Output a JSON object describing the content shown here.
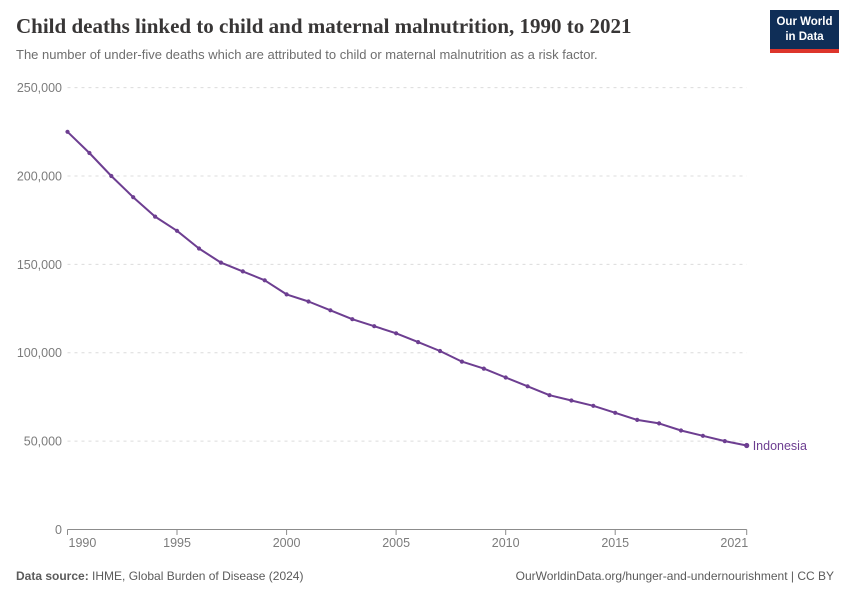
{
  "logo": {
    "line1": "Our World",
    "line2": "in Data",
    "bg": "#0f2e57",
    "accent": "#dd352b"
  },
  "footer": {
    "datasource_label": "Data source:",
    "datasource_text": " IHME, Global Burden of Disease (2024)",
    "credit": "OurWorldinData.org/hunger-and-undernourishment | CC BY"
  },
  "chart_data": {
    "type": "line",
    "title": "Child deaths linked to child and maternal malnutrition, 1990 to 2021",
    "subtitle": "The number of under-five deaths which are attributed to child or maternal malnutrition as a risk factor.",
    "x": [
      1990,
      1991,
      1992,
      1993,
      1994,
      1995,
      1996,
      1997,
      1998,
      1999,
      2000,
      2001,
      2002,
      2003,
      2004,
      2005,
      2006,
      2007,
      2008,
      2009,
      2010,
      2011,
      2012,
      2013,
      2014,
      2015,
      2016,
      2017,
      2018,
      2019,
      2020,
      2021
    ],
    "series": [
      {
        "name": "Indonesia",
        "color": "#6d3e91",
        "values": [
          225000,
          213000,
          200000,
          188000,
          177000,
          169000,
          159000,
          151000,
          146000,
          141000,
          133000,
          129000,
          124000,
          119000,
          115000,
          111000,
          106000,
          101000,
          95000,
          91000,
          86000,
          81000,
          76000,
          73000,
          70000,
          66000,
          62000,
          60000,
          56000,
          53000,
          50000,
          47500
        ]
      }
    ],
    "xlabel": "",
    "ylabel": "",
    "xlim": [
      1990,
      2021
    ],
    "ylim": [
      0,
      250000
    ],
    "xticks": [
      1990,
      1995,
      2000,
      2005,
      2010,
      2015,
      2021
    ],
    "yticks": [
      0,
      50000,
      100000,
      150000,
      200000,
      250000
    ],
    "ytick_labels": [
      "0",
      "50,000",
      "100,000",
      "150,000",
      "200,000",
      "250,000"
    ],
    "grid": "horizontal-dashed",
    "gridline_color": "#dcdcdc",
    "axis_color": "#8c8c8c",
    "tick_label_color": "#7c7c7c",
    "legend_position": "end-of-line-label"
  }
}
